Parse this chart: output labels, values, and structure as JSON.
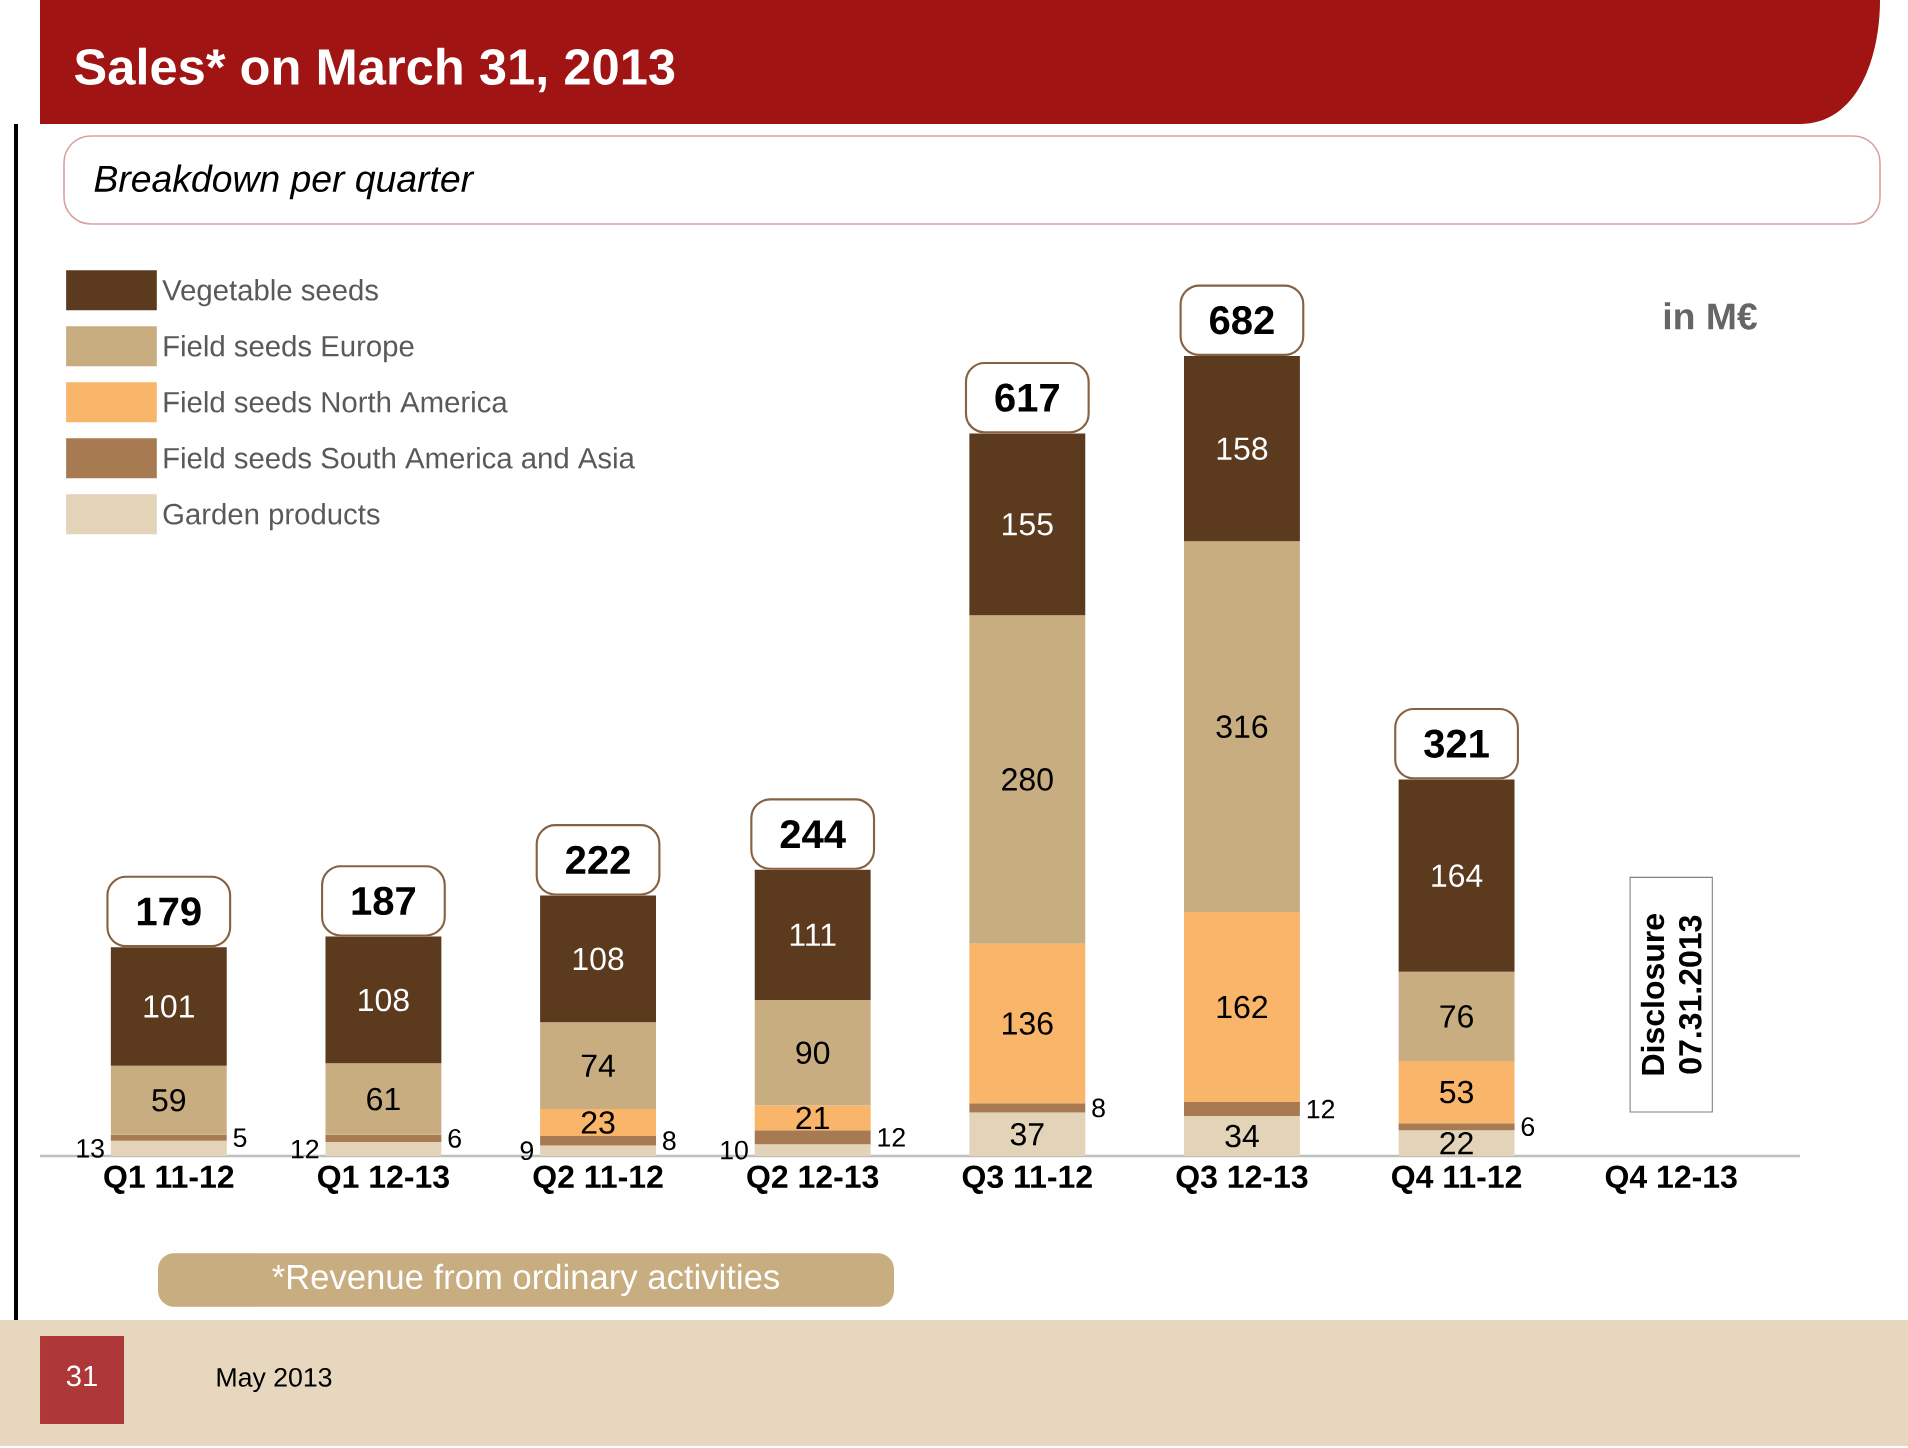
{
  "chart_data": {
    "type": "bar",
    "stacked": true,
    "title": "Sales* on March 31, 2013",
    "subtitle": "Breakdown per quarter",
    "categories": [
      "Q1 11-12",
      "Q1 12-13",
      "Q2 11-12",
      "Q2 12-13",
      "Q3 11-12",
      "Q3 12-13",
      "Q4 11-12",
      "Q4 12-13"
    ],
    "series": [
      {
        "name": "Garden products",
        "color": "#e3d3b8",
        "values": [
          13,
          12,
          9,
          10,
          37,
          34,
          22,
          null
        ]
      },
      {
        "name": "Field seeds South America and Asia",
        "color": "#a87a52",
        "values": [
          5,
          6,
          8,
          12,
          8,
          12,
          6,
          null
        ]
      },
      {
        "name": "Field seeds North America",
        "color": "#f9b56a",
        "values": [
          null,
          null,
          23,
          21,
          136,
          162,
          53,
          null
        ]
      },
      {
        "name": "Field seeds Europe",
        "color": "#c8ad80",
        "values": [
          59,
          61,
          74,
          90,
          280,
          316,
          76,
          null
        ]
      },
      {
        "name": "Vegetable seeds",
        "color": "#5c3a1e",
        "values": [
          101,
          108,
          108,
          111,
          155,
          158,
          164,
          null
        ]
      }
    ],
    "data_labels": true,
    "totals": [
      "179",
      "187",
      "222",
      "244",
      "617",
      "682",
      "321",
      null
    ],
    "legend": "top left",
    "annotations": [
      "in M€",
      "Disclosure 07.31.2013",
      "*Revenue from ordinary activities",
      "31",
      "May 2013"
    ]
  }
}
